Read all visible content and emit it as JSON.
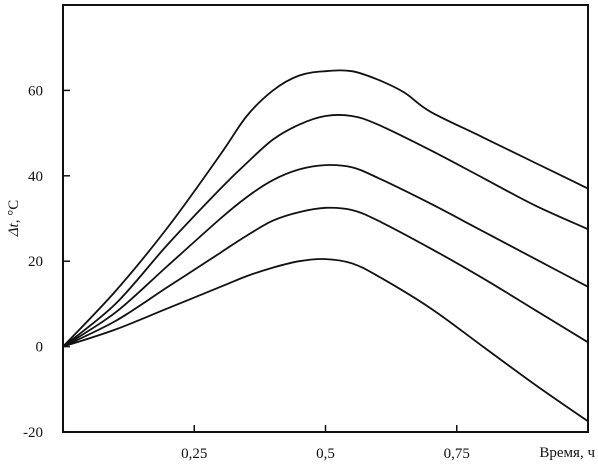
{
  "chart_data": {
    "type": "line",
    "xlabel": "Время, ч",
    "ylabel_symbol": "Δt",
    "ylabel_unit": ", °С",
    "xlim": [
      0,
      1.0
    ],
    "ylim": [
      -20,
      80
    ],
    "x_ticks": [
      {
        "value": 0.25,
        "label": "0,25"
      },
      {
        "value": 0.5,
        "label": "0,5"
      },
      {
        "value": 0.75,
        "label": "0,75"
      }
    ],
    "y_ticks": [
      {
        "value": -20,
        "label": "-20"
      },
      {
        "value": 0,
        "label": "0"
      },
      {
        "value": 20,
        "label": "20"
      },
      {
        "value": 40,
        "label": "40"
      },
      {
        "value": 60,
        "label": "60"
      }
    ],
    "grid": false,
    "series": [
      {
        "points": [
          [
            0,
            0
          ],
          [
            0.1,
            13
          ],
          [
            0.2,
            28
          ],
          [
            0.3,
            45
          ],
          [
            0.35,
            54
          ],
          [
            0.4,
            60
          ],
          [
            0.45,
            63.5
          ],
          [
            0.5,
            64.5
          ],
          [
            0.55,
            64.5
          ],
          [
            0.6,
            62.5
          ],
          [
            0.65,
            59.5
          ],
          [
            0.7,
            55
          ],
          [
            0.8,
            49
          ],
          [
            0.9,
            43
          ],
          [
            1.0,
            37
          ]
        ]
      },
      {
        "points": [
          [
            0,
            0
          ],
          [
            0.1,
            10
          ],
          [
            0.2,
            24
          ],
          [
            0.3,
            37
          ],
          [
            0.35,
            43
          ],
          [
            0.4,
            48.5
          ],
          [
            0.45,
            52
          ],
          [
            0.5,
            54
          ],
          [
            0.55,
            54
          ],
          [
            0.6,
            52
          ],
          [
            0.7,
            46
          ],
          [
            0.8,
            39.5
          ],
          [
            0.9,
            33
          ],
          [
            1.0,
            27.5
          ]
        ]
      },
      {
        "points": [
          [
            0,
            0
          ],
          [
            0.1,
            8
          ],
          [
            0.2,
            19
          ],
          [
            0.3,
            30
          ],
          [
            0.35,
            35
          ],
          [
            0.4,
            39
          ],
          [
            0.45,
            41.5
          ],
          [
            0.5,
            42.5
          ],
          [
            0.55,
            42
          ],
          [
            0.6,
            39.5
          ],
          [
            0.7,
            33.5
          ],
          [
            0.8,
            27
          ],
          [
            0.9,
            20.5
          ],
          [
            1.0,
            14
          ]
        ]
      },
      {
        "points": [
          [
            0,
            0
          ],
          [
            0.1,
            6
          ],
          [
            0.2,
            14
          ],
          [
            0.3,
            22
          ],
          [
            0.35,
            26
          ],
          [
            0.4,
            29.5
          ],
          [
            0.45,
            31.5
          ],
          [
            0.5,
            32.5
          ],
          [
            0.55,
            32
          ],
          [
            0.6,
            29.5
          ],
          [
            0.7,
            23
          ],
          [
            0.8,
            16
          ],
          [
            0.9,
            8.5
          ],
          [
            1.0,
            1
          ]
        ]
      },
      {
        "points": [
          [
            0,
            0
          ],
          [
            0.1,
            4
          ],
          [
            0.2,
            9
          ],
          [
            0.3,
            14
          ],
          [
            0.35,
            16.5
          ],
          [
            0.4,
            18.5
          ],
          [
            0.45,
            20
          ],
          [
            0.5,
            20.5
          ],
          [
            0.55,
            19.5
          ],
          [
            0.6,
            16.5
          ],
          [
            0.7,
            9
          ],
          [
            0.8,
            0
          ],
          [
            0.9,
            -9
          ],
          [
            1.0,
            -17.5
          ]
        ]
      }
    ]
  }
}
